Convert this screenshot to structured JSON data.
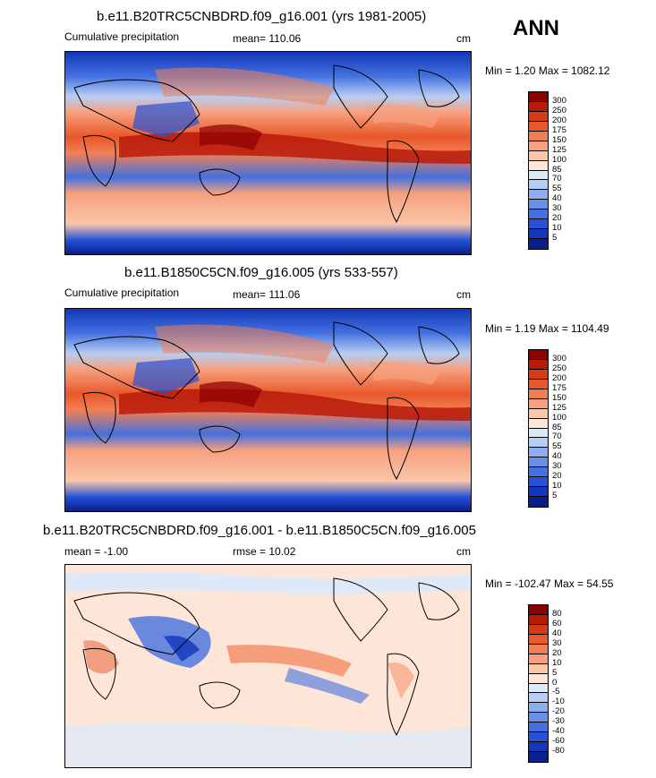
{
  "season": "ANN",
  "panels": [
    {
      "title": "b.e11.B20TRC5CNBDRD.f09_g16.001 (yrs 1981-2005)",
      "left_label": "Cumulative precipitation",
      "mean_label": "mean= 110.06",
      "units": "cm",
      "minmax": "Min =   1.20 Max = 1082.12",
      "colorbar": {
        "labels": [
          "300",
          "250",
          "200",
          "175",
          "150",
          "125",
          "100",
          "85",
          "70",
          "55",
          "40",
          "30",
          "20",
          "10",
          "5"
        ],
        "colors": [
          "#8b0000",
          "#b81a0a",
          "#d63a14",
          "#e8582a",
          "#f27f54",
          "#f7a07e",
          "#fbc5a8",
          "#fde6d8",
          "#dde8f8",
          "#b7cdf3",
          "#8eadec",
          "#6a8fe6",
          "#4471e0",
          "#2552d8",
          "#1237b8",
          "#0a1f8c"
        ]
      }
    },
    {
      "title": "b.e11.B1850C5CN.f09_g16.005 (yrs 533-557)",
      "left_label": "Cumulative precipitation",
      "mean_label": "mean= 111.06",
      "units": "cm",
      "minmax": "Min =   1.19 Max = 1104.49",
      "colorbar": {
        "labels": [
          "300",
          "250",
          "200",
          "175",
          "150",
          "125",
          "100",
          "85",
          "70",
          "55",
          "40",
          "30",
          "20",
          "10",
          "5"
        ],
        "colors": [
          "#8b0000",
          "#b81a0a",
          "#d63a14",
          "#e8582a",
          "#f27f54",
          "#f7a07e",
          "#fbc5a8",
          "#fde6d8",
          "#dde8f8",
          "#b7cdf3",
          "#8eadec",
          "#6a8fe6",
          "#4471e0",
          "#2552d8",
          "#1237b8",
          "#0a1f8c"
        ]
      }
    },
    {
      "title": "b.e11.B20TRC5CNBDRD.f09_g16.001 - b.e11.B1850C5CN.f09_g16.005",
      "left_label": "mean =  -1.00",
      "mean_label": "rmse =  10.02",
      "units": "cm",
      "minmax": "Min = -102.47 Max =  54.55",
      "colorbar": {
        "labels": [
          "80",
          "60",
          "40",
          "30",
          "20",
          "10",
          "5",
          "0",
          "-5",
          "-10",
          "-20",
          "-30",
          "-40",
          "-60",
          "-80"
        ],
        "colors": [
          "#8b0000",
          "#b81a0a",
          "#d63a14",
          "#e8582a",
          "#f27f54",
          "#f7a07e",
          "#fbc5a8",
          "#fde6d8",
          "#dde8f8",
          "#b7cdf3",
          "#8eadec",
          "#6a8fe6",
          "#4471e0",
          "#2552d8",
          "#1237b8",
          "#0a1f8c"
        ]
      }
    }
  ]
}
